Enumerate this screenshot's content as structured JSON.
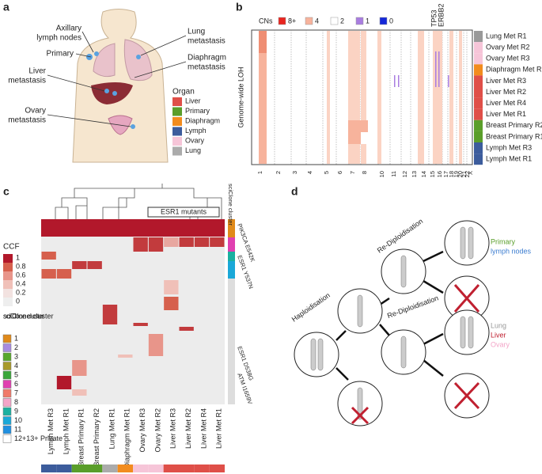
{
  "panel_a": {
    "label": "a",
    "annotations": [
      [
        "Axillary",
        "lymph nodes"
      ],
      [
        "Primary"
      ],
      [
        "Liver",
        "metastasis"
      ],
      [
        "Ovary",
        "metastasis"
      ],
      [
        "Lung",
        "metastasis"
      ],
      [
        "Diaphragm",
        "metastasis"
      ]
    ],
    "legend": {
      "title": "Organ",
      "items": [
        {
          "name": "Liver",
          "color": "#df4f48"
        },
        {
          "name": "Primary",
          "color": "#5a9e2a"
        },
        {
          "name": "Diaphragm",
          "color": "#f28c1e"
        },
        {
          "name": "Lymph",
          "color": "#3c5c9c"
        },
        {
          "name": "Ovary",
          "color": "#f6c5d8"
        },
        {
          "name": "Lung",
          "color": "#ababab"
        }
      ]
    }
  },
  "panel_b": {
    "label": "b",
    "legend_title": "CNs",
    "legend": [
      {
        "name": "8+",
        "color": "#e8251f"
      },
      {
        "name": "4",
        "color": "#f7b39c"
      },
      {
        "name": "2",
        "color": "#ffffff"
      },
      {
        "name": "1",
        "color": "#a97de0"
      },
      {
        "name": "0",
        "color": "#1428d8"
      }
    ],
    "y_label": "Genome-wide LOH",
    "genes": [
      "TP53",
      "ERBB2"
    ],
    "chromosomes": [
      "1",
      "2",
      "3",
      "4",
      "5",
      "6",
      "7",
      "8",
      "10",
      "11",
      "12",
      "13",
      "14",
      "15",
      "16",
      "17",
      "18",
      "19",
      "20",
      "21",
      "22",
      "X"
    ],
    "samples": [
      "Lung Met R1",
      "Ovary Met R2",
      "Ovary Met R3",
      "Diaphragm Met R1",
      "Liver Met R3",
      "Liver Met R2",
      "Liver Met R4",
      "Liver Met R1",
      "Breast Primary R2",
      "Breast Primary R1",
      "Lymph Met R3",
      "Lymph Met R1"
    ]
  },
  "panel_c": {
    "label": "c",
    "ccf_title": "CCF",
    "ccf_ticks": [
      "1",
      "0.8",
      "0.6",
      "0.4",
      "0.2",
      "0"
    ],
    "cluster_title": "sciClone cluster",
    "clusters": [
      "1",
      "2",
      "3",
      "4",
      "5",
      "6",
      "7",
      "8",
      "9",
      "10",
      "11",
      "12+13+ Private"
    ],
    "bracket": "ESR1 mutants",
    "cluster_bar_title": "sciClone cluster",
    "mutations": [
      "PIK3CA E542K",
      "ESR1 Y537N",
      "ESR1 D538G",
      "ATM I1659V"
    ],
    "samples": [
      "Lymph Met R3",
      "Lymph Met R1",
      "Breast Primary R1",
      "Breast Primary R2",
      "Lung Met R1",
      "Diaphragm Met R1",
      "Ovary Met R3",
      "Ovary Met R2",
      "Liver Met R3",
      "Liver Met R2",
      "Liver Met R4",
      "Liver Met R1"
    ]
  },
  "panel_d": {
    "label": "d",
    "steps": [
      "Haploidisation",
      "Re-Diploidisation",
      "Re-Diploidisation"
    ],
    "groups": [
      [
        "Primary",
        "lymph nodes"
      ],
      [
        "Lung",
        "Liver",
        "Ovary"
      ]
    ]
  }
}
